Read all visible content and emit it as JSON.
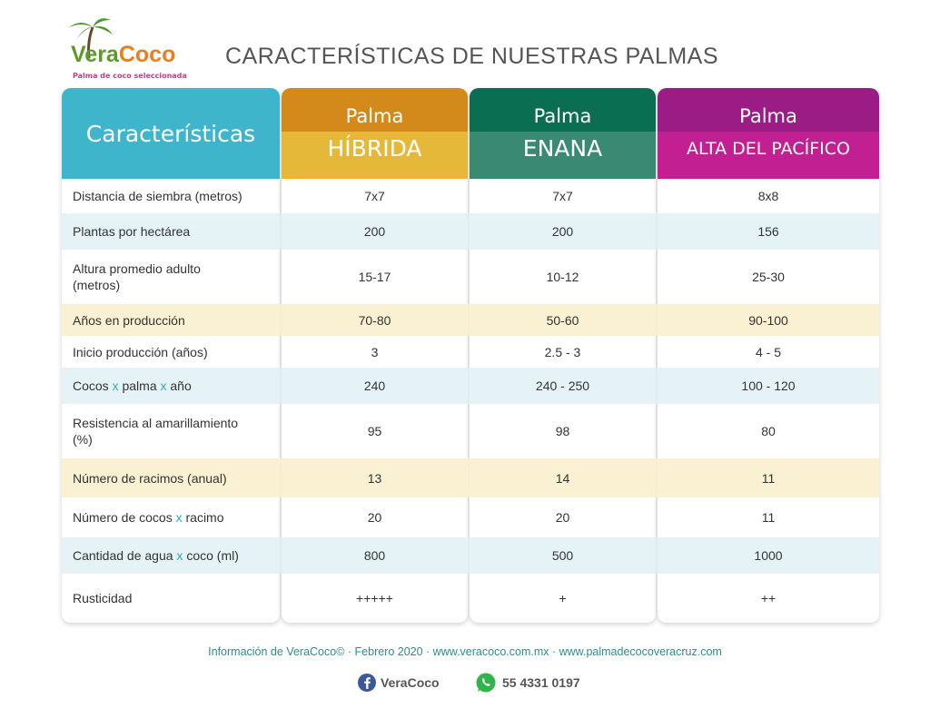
{
  "logo": {
    "brand_first": "Vera",
    "brand_second": "Coco",
    "tagline": "Palma de coco seleccionada"
  },
  "header": {
    "title": "CARACTERÍSTICAS DE NUESTRAS PALMAS"
  },
  "table": {
    "corner": "Características",
    "columns": [
      {
        "line1": "Palma",
        "line2": "HÍBRIDA"
      },
      {
        "line1": "Palma",
        "line2": "ENANA"
      },
      {
        "line1": "Palma",
        "line2": "ALTA DEL PACÍFICO"
      }
    ],
    "rows": [
      [
        "Distancia de siembra (metros)",
        "7x7",
        "7x7",
        "8x8"
      ],
      [
        "Plantas por hectárea",
        "200",
        "200",
        "156"
      ],
      [
        "Altura promedio adulto (metros)",
        "15-17",
        "10-12",
        "25-30"
      ],
      [
        "Años en producción",
        "70-80",
        "50-60",
        "90-100"
      ],
      [
        "Inicio producción (años)",
        "3",
        "2.5 - 3",
        "4 - 5"
      ],
      [
        "Cocos x palma x año",
        "240",
        "240 - 250",
        "100 - 120"
      ],
      [
        "Resistencia al amarillamiento (%)",
        "95",
        "98",
        "80"
      ],
      [
        "Número de racimos (anual)",
        "13",
        "14",
        "11"
      ],
      [
        "Número de cocos x racimo",
        "20",
        "20",
        "11"
      ],
      [
        "Cantidad de agua x coco (ml)",
        "800",
        "500",
        "1000"
      ],
      [
        "Rusticidad",
        "+++++",
        "+",
        "++"
      ]
    ]
  },
  "footer": {
    "info": "Información de VeraCoco© · Febrero 2020 · www.veracoco.com.mx · www.palmadecocoveracruz.com",
    "facebook": "VeraCoco",
    "whatsapp": "55 4331 0197"
  }
}
